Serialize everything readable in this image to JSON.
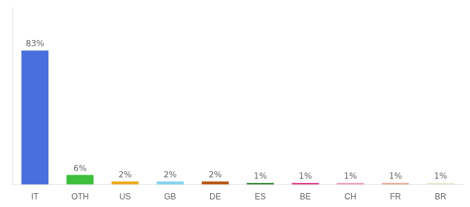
{
  "chart_data": {
    "type": "bar",
    "categories": [
      "IT",
      "OTH",
      "US",
      "GB",
      "DE",
      "ES",
      "BE",
      "CH",
      "FR",
      "BR"
    ],
    "values": [
      83,
      6,
      2,
      2,
      2,
      1,
      1,
      1,
      1,
      1
    ],
    "value_labels": [
      "83%",
      "6%",
      "2%",
      "2%",
      "2%",
      "1%",
      "1%",
      "1%",
      "1%",
      "1%"
    ],
    "data_labels": true,
    "colors": [
      "#4a6fdc",
      "#3dbf3d",
      "#f0a820",
      "#85d4f0",
      "#b85a18",
      "#1e7a1e",
      "#e0257a",
      "#f090b8",
      "#e8a090",
      "#e8e4c8"
    ],
    "ylim": [
      0,
      110
    ],
    "tick_labels": "x",
    "grid": false
  }
}
